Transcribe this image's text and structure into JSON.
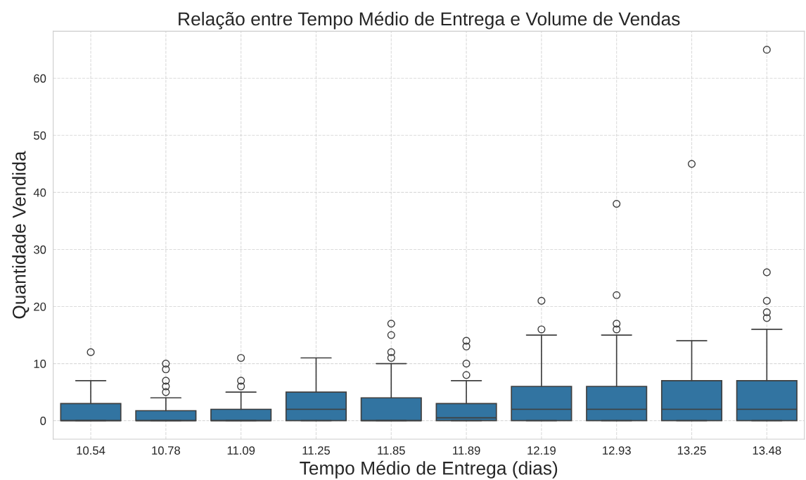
{
  "chart_data": {
    "type": "box",
    "title": "Relação entre Tempo Médio de Entrega e Volume de Vendas",
    "xlabel": "Tempo Médio de Entrega (dias)",
    "ylabel": "Quantidade Vendida",
    "categories": [
      "10.54",
      "10.78",
      "11.09",
      "11.25",
      "11.85",
      "11.89",
      "12.19",
      "12.93",
      "13.25",
      "13.48"
    ],
    "color": "#3274a1",
    "boxes": [
      {
        "low": 0,
        "q1": 0,
        "median": 0,
        "q3": 3,
        "high": 7,
        "outliers": [
          12
        ]
      },
      {
        "low": 0,
        "q1": 0,
        "median": 0,
        "q3": 1.75,
        "high": 4,
        "outliers": [
          5,
          6,
          7,
          9,
          10
        ]
      },
      {
        "low": 0,
        "q1": 0,
        "median": 0,
        "q3": 2,
        "high": 5,
        "outliers": [
          6,
          7,
          11
        ]
      },
      {
        "low": 0,
        "q1": 0,
        "median": 2,
        "q3": 5,
        "high": 11
      },
      {
        "low": 0,
        "q1": 0,
        "median": 0,
        "q3": 4,
        "high": 10,
        "outliers": [
          11,
          12,
          15,
          17
        ]
      },
      {
        "low": 0,
        "q1": 0,
        "median": 0.5,
        "q3": 3,
        "high": 7,
        "outliers": [
          8,
          10,
          13,
          14
        ]
      },
      {
        "low": 0,
        "q1": 0,
        "median": 2,
        "q3": 6,
        "high": 15,
        "outliers": [
          16,
          21
        ]
      },
      {
        "low": 0,
        "q1": 0,
        "median": 2,
        "q3": 6,
        "high": 15,
        "outliers": [
          16,
          17,
          22,
          38
        ]
      },
      {
        "low": 0,
        "q1": 0,
        "median": 2,
        "q3": 7,
        "high": 14,
        "outliers": [
          45
        ]
      },
      {
        "low": 0,
        "q1": 0,
        "median": 2,
        "q3": 7,
        "high": 16,
        "outliers": [
          18,
          19,
          21,
          26,
          65
        ]
      }
    ],
    "ylim": [
      -3.25,
      68.25
    ],
    "yticks": [
      0,
      10,
      20,
      30,
      40,
      50,
      60
    ],
    "grid": true,
    "line_style": "dashed"
  }
}
